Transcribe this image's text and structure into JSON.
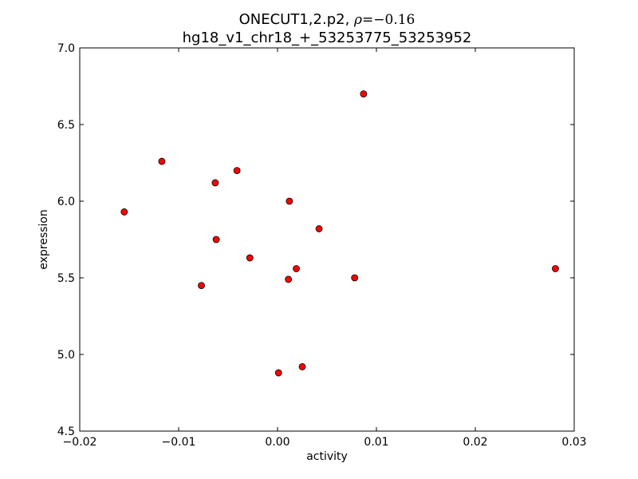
{
  "chart_data": {
    "type": "scatter",
    "title_line1_prefix": "ONECUT1,2.p2, ",
    "title_rho_symbol": "ρ",
    "title_rho_value": "=−0.16",
    "title_line2": "hg18_v1_chr18_+_53253775_53253952",
    "xlabel": "activity",
    "ylabel": "expression",
    "xlim": [
      -0.02,
      0.03
    ],
    "ylim": [
      4.5,
      7.0
    ],
    "xticks": [
      -0.02,
      -0.01,
      0.0,
      0.01,
      0.02,
      0.03
    ],
    "xtick_labels": [
      "−0.02",
      "−0.01",
      "0.00",
      "0.01",
      "0.02",
      "0.03"
    ],
    "yticks": [
      4.5,
      5.0,
      5.5,
      6.0,
      6.5,
      7.0
    ],
    "ytick_labels": [
      "4.5",
      "5.0",
      "5.5",
      "6.0",
      "6.5",
      "7.0"
    ],
    "grid": false,
    "marker_color": "#ff0000",
    "marker_edge_color": "#000000",
    "series": [
      {
        "points": [
          {
            "x": -0.0155,
            "y": 5.93
          },
          {
            "x": -0.0117,
            "y": 6.26
          },
          {
            "x": -0.0063,
            "y": 6.12
          },
          {
            "x": -0.0041,
            "y": 6.2
          },
          {
            "x": 0.0012,
            "y": 6.0
          },
          {
            "x": -0.0062,
            "y": 5.75
          },
          {
            "x": 0.0042,
            "y": 5.82
          },
          {
            "x": -0.0028,
            "y": 5.63
          },
          {
            "x": 0.0019,
            "y": 5.56
          },
          {
            "x": 0.0011,
            "y": 5.49
          },
          {
            "x": 0.0078,
            "y": 5.5
          },
          {
            "x": -0.0077,
            "y": 5.45
          },
          {
            "x": 0.0087,
            "y": 6.7
          },
          {
            "x": 0.0281,
            "y": 5.56
          },
          {
            "x": 0.0025,
            "y": 4.92
          },
          {
            "x": 0.0001,
            "y": 4.88
          }
        ]
      }
    ]
  }
}
